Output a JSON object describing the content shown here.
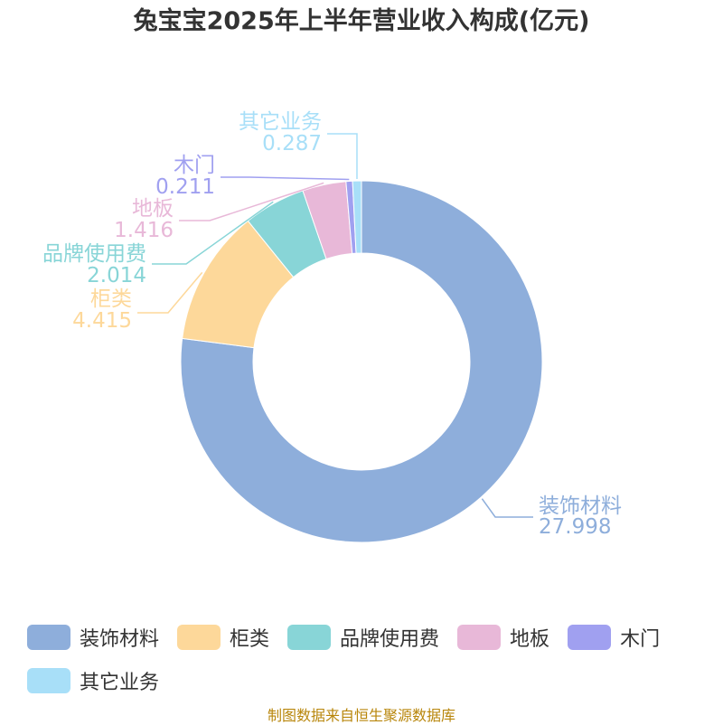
{
  "chart_data": {
    "type": "pie",
    "title": "兔宝宝2025年上半年营业收入构成(亿元)",
    "categories": [
      "装饰材料",
      "柜类",
      "品牌使用费",
      "地板",
      "木门",
      "其它业务"
    ],
    "values": [
      27.998,
      4.415,
      2.014,
      1.416,
      0.211,
      0.287
    ],
    "value_labels": [
      "27.998",
      "4.415",
      "2.014",
      "1.416",
      "0.211",
      "0.287"
    ],
    "colors": [
      "#8eaedb",
      "#fdd89a",
      "#88d5d7",
      "#e8b8d8",
      "#a0a0f0",
      "#a8dff8"
    ],
    "donut": true,
    "legend_position": "bottom"
  },
  "footer": {
    "source": "制图数据来自恒生聚源数据库"
  }
}
